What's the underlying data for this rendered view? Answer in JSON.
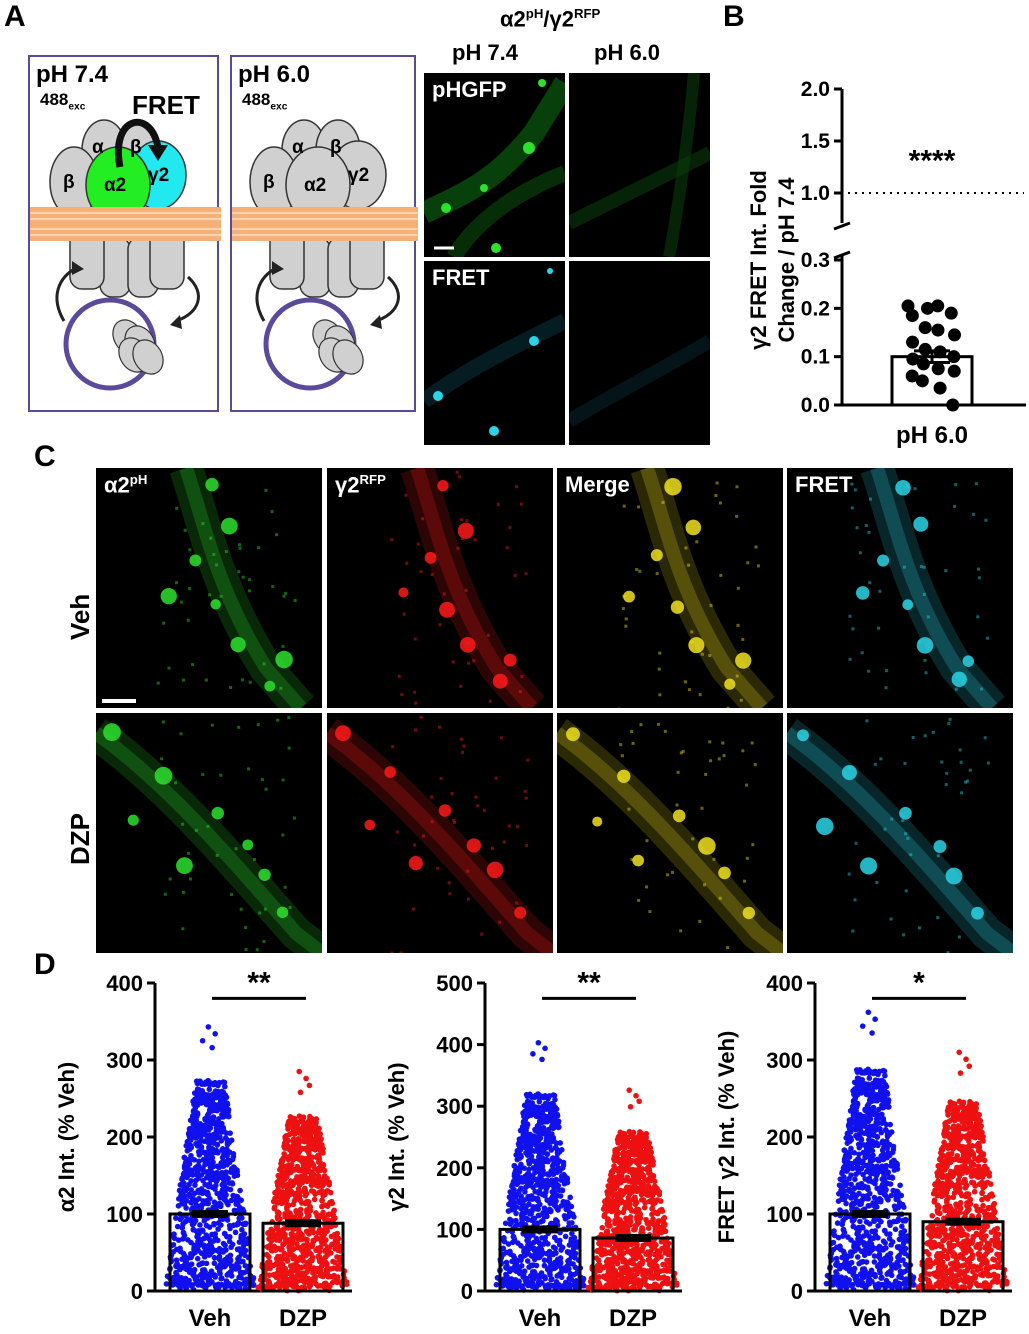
{
  "panel_labels": {
    "a": "A",
    "b": "B",
    "c": "C",
    "d": "D"
  },
  "schematic": {
    "left": {
      "ph": "pH 7.4",
      "exc": "488",
      "exc_sub": "exc",
      "fret": "FRET",
      "subunits": {
        "alpha": "α",
        "beta_top": "β",
        "beta_left": "β",
        "alpha2": "α2",
        "gamma2": "γ2"
      }
    },
    "right": {
      "ph": "pH 6.0",
      "exc": "488",
      "exc_sub": "exc",
      "subunits": {
        "alpha": "α",
        "beta_top": "β",
        "beta_left": "β",
        "alpha2": "α2",
        "gamma2": "γ2"
      }
    },
    "colors": {
      "frame": "#5b4a9a",
      "alpha2_fret": "#22ee22",
      "gamma2_fret": "#22e8f0",
      "subunit": "#d0d0d0",
      "membrane": "#f5b078"
    }
  },
  "panel_a_images": {
    "title_main": "α2",
    "title_sup1": "pH",
    "title_sep": "/γ2",
    "title_sup2": "RFP",
    "col_labels": [
      "pH 7.4",
      "pH 6.0"
    ],
    "row_labels": [
      "pHGFP",
      "FRET"
    ]
  },
  "panel_c": {
    "col_labels": [
      {
        "main": "α2",
        "sup": "pH"
      },
      {
        "main": "γ2",
        "sup": "RFP"
      },
      {
        "main": "Merge",
        "sup": ""
      },
      {
        "main": "FRET",
        "sup": ""
      }
    ],
    "row_labels": [
      "Veh",
      "DZP"
    ],
    "channel_colors": [
      "#2ee02e",
      "#ff1a1a",
      "#f0e020",
      "#2ad4e6"
    ]
  },
  "chart_data": [
    {
      "type": "bar",
      "panel": "B",
      "ylabel_line1": "γ2 FRET Int. Fold",
      "ylabel_line2": "Change / pH 7.4",
      "categories": [
        "pH 6.0"
      ],
      "values": [
        0.1
      ],
      "sem": 0.012,
      "yaxis_broken": true,
      "yticks_lower": [
        "0.0",
        "0.1",
        "0.2",
        "0.3"
      ],
      "yticks_upper": [
        "1.0",
        "1.5",
        "2.0"
      ],
      "reference_line": 1.0,
      "significance": "****",
      "points": [
        0.205,
        0.2,
        0.205,
        0.19,
        0.185,
        0.16,
        0.155,
        0.145,
        0.13,
        0.115,
        0.11,
        0.1,
        0.095,
        0.085,
        0.075,
        0.07,
        0.06,
        0.05,
        0.035,
        0.0
      ]
    },
    {
      "type": "bar",
      "panel": "D1",
      "ylabel": "α2 Int. (% Veh)",
      "categories": [
        "Veh",
        "DZP"
      ],
      "values": [
        100,
        88
      ],
      "ylim": [
        0,
        400
      ],
      "yticks": [
        0,
        100,
        200,
        300,
        400
      ],
      "significance": "**",
      "max_points": [
        343,
        285
      ],
      "series_colors": [
        "#1111ee",
        "#ee1111"
      ]
    },
    {
      "type": "bar",
      "panel": "D2",
      "ylabel": "γ2 Int. (% Veh)",
      "categories": [
        "Veh",
        "DZP"
      ],
      "values": [
        100,
        86
      ],
      "ylim": [
        0,
        500
      ],
      "yticks": [
        0,
        100,
        200,
        300,
        400,
        500
      ],
      "significance": "**",
      "max_points": [
        403,
        326
      ],
      "series_colors": [
        "#1111ee",
        "#ee1111"
      ]
    },
    {
      "type": "bar",
      "panel": "D3",
      "ylabel": "FRET γ2 Int. (% Veh)",
      "categories": [
        "Veh",
        "DZP"
      ],
      "values": [
        100,
        90
      ],
      "ylim": [
        0,
        400
      ],
      "yticks": [
        0,
        100,
        200,
        300,
        400
      ],
      "significance": "*",
      "max_points": [
        362,
        310
      ],
      "series_colors": [
        "#1111ee",
        "#ee1111"
      ]
    }
  ]
}
